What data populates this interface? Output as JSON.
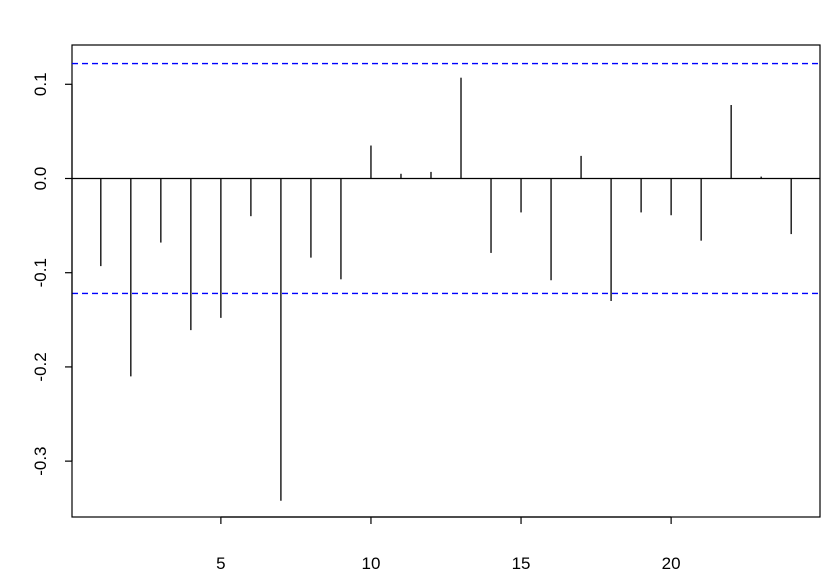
{
  "chart_data": {
    "type": "bar",
    "title": "",
    "xlabel": "",
    "ylabel": "",
    "x": [
      1,
      2,
      3,
      4,
      5,
      6,
      7,
      8,
      9,
      10,
      11,
      12,
      13,
      14,
      15,
      16,
      17,
      18,
      19,
      20,
      21,
      22,
      23,
      24
    ],
    "values": [
      -0.093,
      -0.21,
      -0.068,
      -0.161,
      -0.148,
      -0.04,
      -0.342,
      -0.084,
      -0.107,
      0.035,
      0.005,
      0.007,
      0.107,
      -0.079,
      -0.036,
      -0.108,
      0.024,
      -0.13,
      -0.036,
      -0.039,
      -0.066,
      0.078,
      0.002,
      -0.059
    ],
    "xlim": [
      0.04,
      24.96
    ],
    "ylim": [
      -0.3593,
      0.1417
    ],
    "x_ticks": [
      5,
      10,
      15,
      20
    ],
    "y_ticks": [
      -0.3,
      -0.2,
      -0.1,
      0.0,
      0.1
    ],
    "x_tick_labels": [
      "5",
      "10",
      "15",
      "20"
    ],
    "y_tick_labels": [
      "-0.3",
      "-0.2",
      "-0.1",
      "0.0",
      "0.1"
    ],
    "confidence_bounds": [
      0.122,
      -0.122
    ],
    "zero_line": 0,
    "grid": false,
    "colors": {
      "bars": "#000000",
      "bounds": "#0000ff",
      "axes": "#000000"
    }
  }
}
